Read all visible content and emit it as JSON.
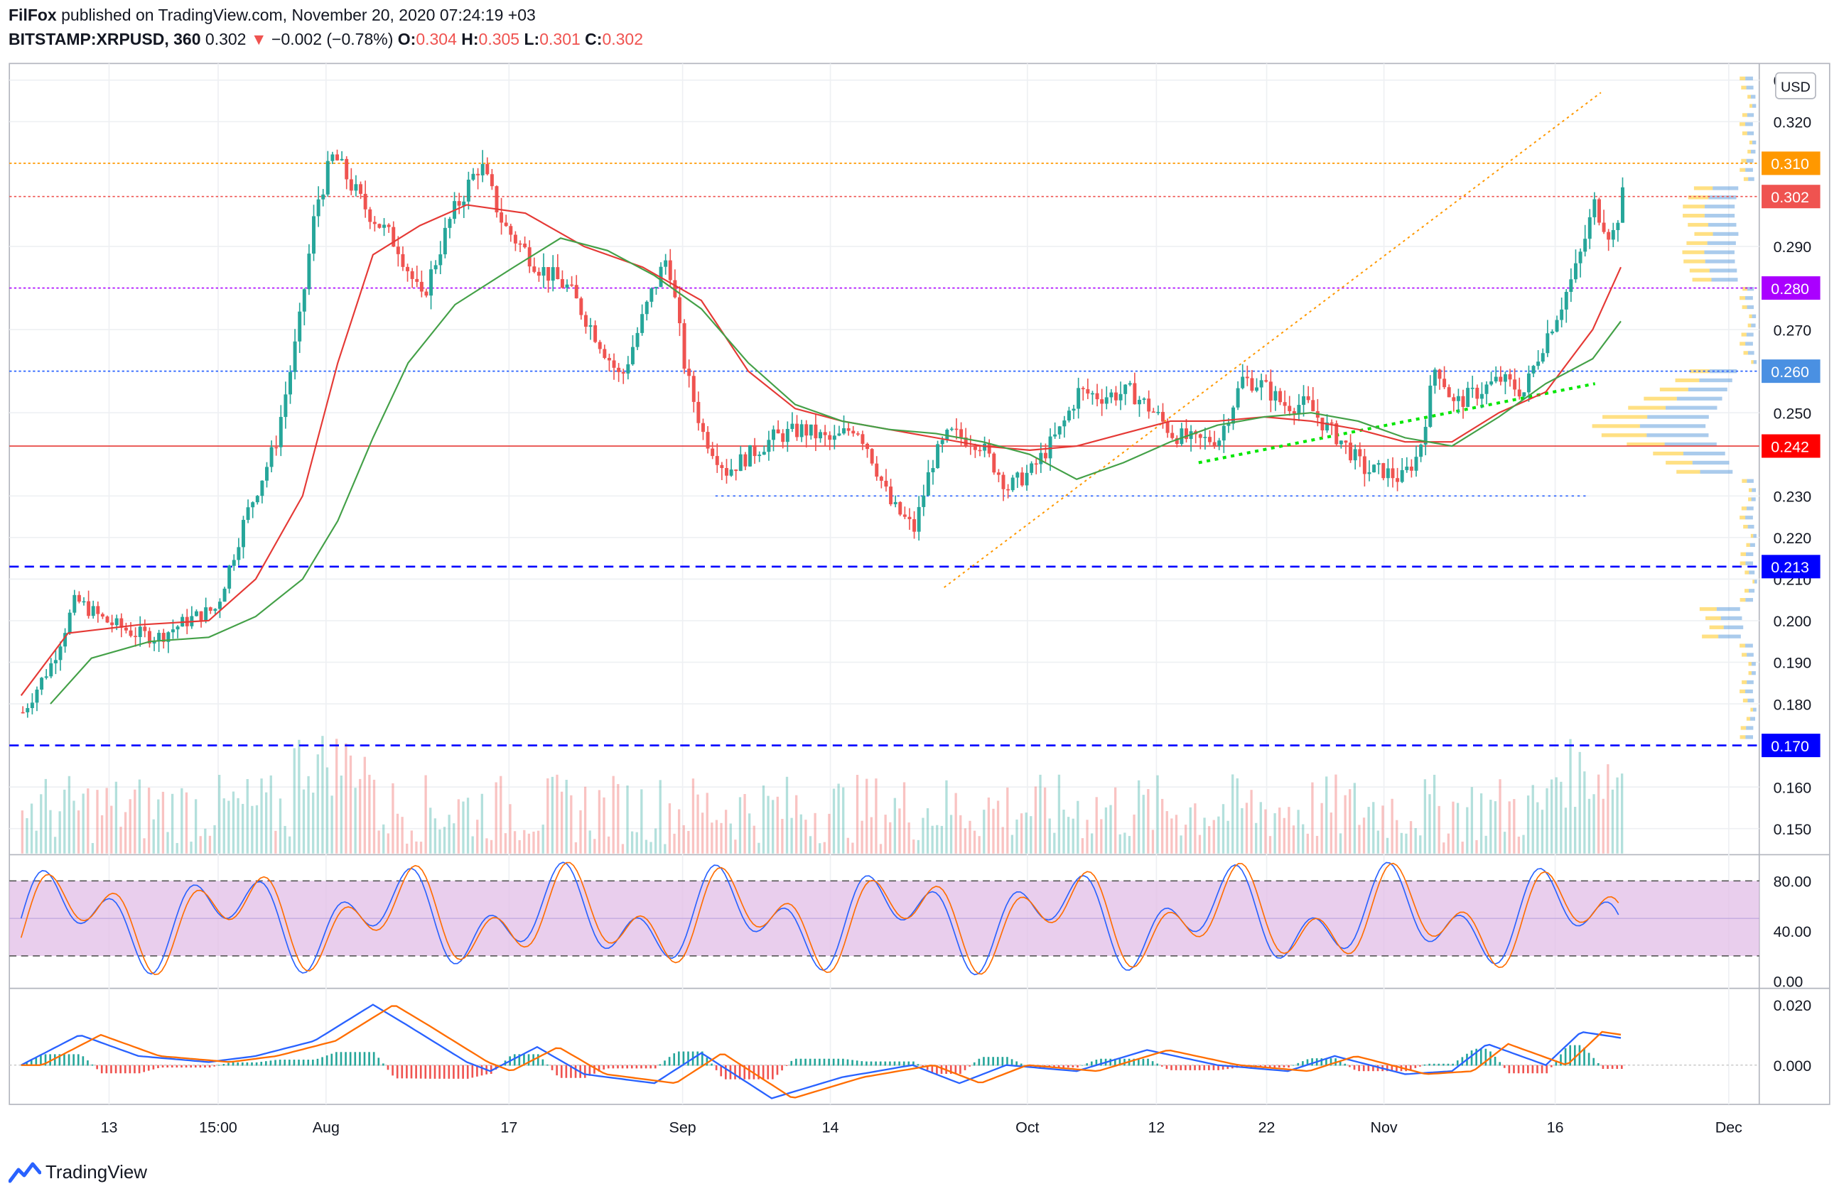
{
  "header": {
    "author": "FilFox",
    "published": "published on TradingView.com, November 20, 2020 07:24:19 +03",
    "symbol": "BITSTAMP:XRPUSD, 360",
    "last": "0.302",
    "change_arrow": "▼",
    "change": "−0.002 (−0.78%)",
    "o_label": "O:",
    "o_value": "0.304",
    "h_label": "H:",
    "h_value": "0.305",
    "l_label": "L:",
    "l_value": "0.301",
    "c_label": "C:",
    "c_value": "0.302"
  },
  "currency_button": "USD",
  "footer_logo_text": "TradingView",
  "colors": {
    "up": "#26a69a",
    "down": "#ef5350",
    "ma_fast": "#e53935",
    "ma_slow": "#43a047",
    "macd": "#2962ff",
    "signal": "#ff6d00",
    "stoch_fill": "#e1bee7"
  },
  "chart_data": [
    {
      "type": "candlestick",
      "title": "BITSTAMP:XRPUSD, 360",
      "y_ticks": [
        "0.330",
        "0.320",
        "0.290",
        "0.270",
        "0.250",
        "0.230",
        "0.220",
        "0.210",
        "0.200",
        "0.190",
        "0.180",
        "0.160",
        "0.150"
      ],
      "ylim": [
        0.144,
        0.334
      ],
      "x_ticks": [
        "13",
        "15:00",
        "Aug",
        "17",
        "Sep",
        "14",
        "Oct",
        "12",
        "22",
        "Nov",
        "16",
        "Dec"
      ],
      "price_labels": [
        {
          "value": "0.310",
          "color": "#ff9800"
        },
        {
          "value": "0.302",
          "color": "#ef5350"
        },
        {
          "value": "0.280",
          "color": "#aa00ff"
        },
        {
          "value": "0.260",
          "color": "#4a90e2"
        },
        {
          "value": "0.242",
          "color": "#ff0000"
        },
        {
          "value": "0.213",
          "color": "#0000ff"
        },
        {
          "value": "0.170",
          "color": "#0000ff"
        }
      ],
      "horizontal_levels": [
        {
          "value": 0.31,
          "style": "dotted",
          "color": "#ff9800"
        },
        {
          "value": 0.302,
          "style": "dotted",
          "color": "#ef5350"
        },
        {
          "value": 0.28,
          "style": "dotted",
          "color": "#aa00ff"
        },
        {
          "value": 0.26,
          "style": "dotted",
          "color": "#2962ff"
        },
        {
          "value": 0.242,
          "style": "solid",
          "color": "#e53935"
        },
        {
          "value": 0.213,
          "style": "dashed",
          "color": "#0000ff"
        },
        {
          "value": 0.17,
          "style": "dashed",
          "color": "#0000ff"
        }
      ],
      "close_anchors": [
        [
          0,
          0.178
        ],
        [
          25,
          0.19
        ],
        [
          45,
          0.205
        ],
        [
          70,
          0.2
        ],
        [
          95,
          0.197
        ],
        [
          115,
          0.196
        ],
        [
          140,
          0.2
        ],
        [
          165,
          0.203
        ],
        [
          190,
          0.225
        ],
        [
          215,
          0.242
        ],
        [
          235,
          0.27
        ],
        [
          250,
          0.3
        ],
        [
          265,
          0.312
        ],
        [
          290,
          0.3
        ],
        [
          320,
          0.29
        ],
        [
          340,
          0.277
        ],
        [
          365,
          0.297
        ],
        [
          390,
          0.31
        ],
        [
          410,
          0.295
        ],
        [
          440,
          0.285
        ],
        [
          465,
          0.28
        ],
        [
          490,
          0.268
        ],
        [
          510,
          0.258
        ],
        [
          535,
          0.278
        ],
        [
          550,
          0.288
        ],
        [
          565,
          0.26
        ],
        [
          580,
          0.245
        ],
        [
          600,
          0.236
        ],
        [
          620,
          0.24
        ],
        [
          640,
          0.244
        ],
        [
          665,
          0.246
        ],
        [
          690,
          0.243
        ],
        [
          710,
          0.247
        ],
        [
          720,
          0.242
        ],
        [
          740,
          0.228
        ],
        [
          760,
          0.222
        ],
        [
          775,
          0.238
        ],
        [
          790,
          0.245
        ],
        [
          815,
          0.243
        ],
        [
          840,
          0.232
        ],
        [
          860,
          0.236
        ],
        [
          885,
          0.246
        ],
        [
          900,
          0.255
        ],
        [
          920,
          0.254
        ],
        [
          945,
          0.255
        ],
        [
          965,
          0.25
        ],
        [
          980,
          0.245
        ],
        [
          1000,
          0.243
        ],
        [
          1020,
          0.244
        ],
        [
          1040,
          0.258
        ],
        [
          1055,
          0.257
        ],
        [
          1075,
          0.252
        ],
        [
          1095,
          0.252
        ],
        [
          1110,
          0.247
        ],
        [
          1125,
          0.243
        ],
        [
          1145,
          0.236
        ],
        [
          1160,
          0.236
        ],
        [
          1175,
          0.234
        ],
        [
          1190,
          0.24
        ],
        [
          1205,
          0.262
        ],
        [
          1220,
          0.252
        ],
        [
          1240,
          0.255
        ],
        [
          1260,
          0.258
        ],
        [
          1280,
          0.255
        ],
        [
          1295,
          0.266
        ],
        [
          1310,
          0.275
        ],
        [
          1325,
          0.285
        ],
        [
          1340,
          0.3
        ],
        [
          1355,
          0.292
        ],
        [
          1364,
          0.302
        ]
      ],
      "ma_fast_anchors": [
        [
          0,
          0.182
        ],
        [
          40,
          0.197
        ],
        [
          100,
          0.199
        ],
        [
          160,
          0.2
        ],
        [
          200,
          0.21
        ],
        [
          240,
          0.23
        ],
        [
          270,
          0.262
        ],
        [
          300,
          0.288
        ],
        [
          340,
          0.295
        ],
        [
          380,
          0.3
        ],
        [
          430,
          0.298
        ],
        [
          480,
          0.29
        ],
        [
          530,
          0.285
        ],
        [
          580,
          0.277
        ],
        [
          620,
          0.26
        ],
        [
          660,
          0.251
        ],
        [
          700,
          0.248
        ],
        [
          740,
          0.246
        ],
        [
          780,
          0.244
        ],
        [
          820,
          0.242
        ],
        [
          860,
          0.241
        ],
        [
          900,
          0.242
        ],
        [
          940,
          0.245
        ],
        [
          980,
          0.248
        ],
        [
          1020,
          0.248
        ],
        [
          1060,
          0.249
        ],
        [
          1100,
          0.248
        ],
        [
          1140,
          0.246
        ],
        [
          1180,
          0.243
        ],
        [
          1220,
          0.243
        ],
        [
          1260,
          0.25
        ],
        [
          1300,
          0.255
        ],
        [
          1340,
          0.27
        ],
        [
          1364,
          0.285
        ]
      ],
      "ma_slow_anchors": [
        [
          25,
          0.18
        ],
        [
          60,
          0.191
        ],
        [
          110,
          0.195
        ],
        [
          160,
          0.196
        ],
        [
          200,
          0.201
        ],
        [
          240,
          0.21
        ],
        [
          270,
          0.224
        ],
        [
          300,
          0.244
        ],
        [
          330,
          0.262
        ],
        [
          370,
          0.276
        ],
        [
          420,
          0.285
        ],
        [
          460,
          0.292
        ],
        [
          500,
          0.289
        ],
        [
          540,
          0.283
        ],
        [
          580,
          0.275
        ],
        [
          620,
          0.262
        ],
        [
          660,
          0.252
        ],
        [
          700,
          0.248
        ],
        [
          740,
          0.246
        ],
        [
          780,
          0.245
        ],
        [
          820,
          0.243
        ],
        [
          860,
          0.24
        ],
        [
          900,
          0.234
        ],
        [
          940,
          0.238
        ],
        [
          980,
          0.243
        ],
        [
          1020,
          0.247
        ],
        [
          1060,
          0.249
        ],
        [
          1100,
          0.25
        ],
        [
          1140,
          0.248
        ],
        [
          1180,
          0.244
        ],
        [
          1220,
          0.242
        ],
        [
          1260,
          0.249
        ],
        [
          1300,
          0.257
        ],
        [
          1340,
          0.263
        ],
        [
          1364,
          0.272
        ]
      ],
      "indicators": [
        {
          "type": "stochastic",
          "y_ticks": [
            "80.00",
            "40.00",
            "0.00"
          ],
          "ylim": [
            -5,
            100
          ],
          "bands": [
            20,
            80
          ]
        },
        {
          "type": "macd",
          "y_ticks": [
            "0.020",
            "0.000"
          ],
          "ylim": [
            -0.013,
            0.025
          ]
        }
      ]
    }
  ]
}
